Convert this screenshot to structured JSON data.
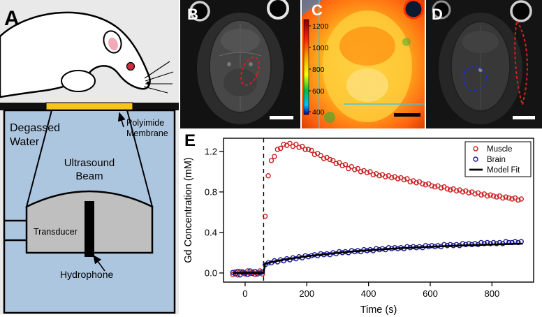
{
  "panels": {
    "a": {
      "label": "A",
      "labels": {
        "degassed": [
          "Degassed",
          "Water"
        ],
        "membrane": [
          "Polyimide",
          "Membrane"
        ],
        "beam": [
          "Ultrasound",
          "Beam"
        ],
        "transducer": "Transducer",
        "hydrophone": "Hydrophone"
      }
    },
    "b": {
      "label": "B"
    },
    "c": {
      "label": "C",
      "colorbar_ticks": [
        "1200",
        "1000",
        "800",
        "600",
        "400"
      ]
    },
    "d": {
      "label": "D"
    },
    "e": {
      "label": "E"
    }
  },
  "colors": {
    "muscle": "#cc2020",
    "brain": "#1c1c8f",
    "model_fit": "#000000",
    "membrane_yellow": "#f6c41a",
    "water_blue": "#adc6e0",
    "transducer_gray": "#bfbfbf"
  },
  "chart_data": {
    "type": "scatter",
    "title": "",
    "xlabel": "Time (s)",
    "ylabel": "Gd Concentration (mM)",
    "xlim": [
      -70,
      935
    ],
    "ylim": [
      -0.09,
      1.33
    ],
    "xticks": [
      0,
      200,
      400,
      600,
      800
    ],
    "xtick_labels": [
      "0",
      "200",
      "400",
      "600",
      "800"
    ],
    "yticks": [
      0.0,
      0.4,
      0.8,
      1.2
    ],
    "ytick_labels": [
      "0.0",
      "0.4",
      "0.8",
      "1.2"
    ],
    "vline_x": 60,
    "grid": false,
    "legend_position": "top-right",
    "legend": [
      {
        "label": "Muscle",
        "color": "#cc2020",
        "marker": "circle"
      },
      {
        "label": "Brain",
        "color": "#1c1c8f",
        "marker": "circle"
      },
      {
        "label": "Model Fit",
        "color": "#000000",
        "marker": "line"
      }
    ],
    "series": [
      {
        "name": "Muscle",
        "color": "#cc2020",
        "type": "scatter",
        "x": [
          -40,
          -32,
          -24,
          -16,
          -8,
          0,
          8,
          16,
          24,
          32,
          40,
          48,
          56,
          65,
          75,
          85,
          95,
          105,
          115,
          125,
          135,
          145,
          155,
          165,
          175,
          185,
          195,
          205,
          215,
          225,
          235,
          245,
          255,
          265,
          275,
          285,
          295,
          305,
          315,
          325,
          335,
          345,
          355,
          365,
          375,
          385,
          395,
          405,
          415,
          425,
          435,
          445,
          455,
          465,
          475,
          485,
          495,
          505,
          515,
          525,
          535,
          545,
          555,
          565,
          575,
          585,
          595,
          605,
          615,
          625,
          635,
          645,
          655,
          665,
          675,
          685,
          695,
          705,
          715,
          725,
          735,
          745,
          755,
          765,
          775,
          785,
          795,
          805,
          815,
          825,
          835,
          845,
          855,
          865,
          875,
          885,
          895
        ],
        "y": [
          -0.015,
          0.01,
          -0.02,
          0.015,
          0,
          -0.01,
          0.02,
          -0.005,
          0.01,
          -0.015,
          0.005,
          0.02,
          -0.01,
          0.56,
          0.96,
          1.11,
          1.15,
          1.22,
          1.23,
          1.27,
          1.26,
          1.28,
          1.25,
          1.27,
          1.24,
          1.25,
          1.22,
          1.22,
          1.21,
          1.17,
          1.18,
          1.16,
          1.13,
          1.14,
          1.12,
          1.11,
          1.08,
          1.09,
          1.06,
          1.07,
          1.03,
          1.05,
          1.02,
          1.03,
          1.0,
          1.01,
          0.99,
          1.0,
          0.97,
          0.98,
          0.96,
          0.97,
          0.95,
          0.96,
          0.94,
          0.95,
          0.93,
          0.94,
          0.92,
          0.93,
          0.9,
          0.91,
          0.89,
          0.9,
          0.88,
          0.87,
          0.88,
          0.86,
          0.85,
          0.86,
          0.84,
          0.85,
          0.83,
          0.82,
          0.83,
          0.81,
          0.82,
          0.8,
          0.81,
          0.79,
          0.8,
          0.78,
          0.79,
          0.77,
          0.78,
          0.76,
          0.77,
          0.76,
          0.75,
          0.76,
          0.74,
          0.75,
          0.74,
          0.73,
          0.74,
          0.72,
          0.73
        ]
      },
      {
        "name": "Brain",
        "color": "#1c1c8f",
        "type": "scatter",
        "x": [
          -40,
          -32,
          -24,
          -16,
          -8,
          0,
          8,
          16,
          24,
          32,
          40,
          48,
          56,
          65,
          75,
          85,
          95,
          105,
          115,
          125,
          135,
          145,
          155,
          165,
          175,
          185,
          195,
          205,
          215,
          225,
          235,
          245,
          255,
          265,
          275,
          285,
          295,
          305,
          315,
          325,
          335,
          345,
          355,
          365,
          375,
          385,
          395,
          405,
          415,
          425,
          435,
          445,
          455,
          465,
          475,
          485,
          495,
          505,
          515,
          525,
          535,
          545,
          555,
          565,
          575,
          585,
          595,
          605,
          615,
          625,
          635,
          645,
          655,
          665,
          675,
          685,
          695,
          705,
          715,
          725,
          735,
          745,
          755,
          765,
          775,
          785,
          795,
          805,
          815,
          825,
          835,
          845,
          855,
          865,
          875,
          885,
          895
        ],
        "y": [
          0.005,
          -0.01,
          0.015,
          -0.02,
          0.01,
          0,
          -0.015,
          0.02,
          -0.005,
          0.015,
          -0.01,
          0,
          0.01,
          0.08,
          0.1,
          0.1,
          0.12,
          0.11,
          0.13,
          0.12,
          0.14,
          0.13,
          0.15,
          0.14,
          0.16,
          0.15,
          0.17,
          0.16,
          0.17,
          0.18,
          0.17,
          0.19,
          0.18,
          0.19,
          0.18,
          0.2,
          0.19,
          0.21,
          0.2,
          0.21,
          0.2,
          0.22,
          0.21,
          0.22,
          0.21,
          0.23,
          0.22,
          0.23,
          0.22,
          0.24,
          0.23,
          0.24,
          0.23,
          0.25,
          0.24,
          0.25,
          0.24,
          0.25,
          0.24,
          0.26,
          0.25,
          0.26,
          0.25,
          0.26,
          0.25,
          0.27,
          0.26,
          0.27,
          0.26,
          0.27,
          0.26,
          0.28,
          0.27,
          0.28,
          0.27,
          0.28,
          0.27,
          0.29,
          0.28,
          0.29,
          0.28,
          0.29,
          0.28,
          0.3,
          0.29,
          0.3,
          0.29,
          0.3,
          0.29,
          0.3,
          0.29,
          0.31,
          0.3,
          0.3,
          0.31,
          0.3,
          0.31
        ]
      },
      {
        "name": "Model Fit",
        "color": "#000000",
        "type": "line",
        "x": [
          -40,
          0,
          55,
          60,
          65,
          80,
          100,
          125,
          150,
          175,
          200,
          250,
          300,
          350,
          400,
          450,
          500,
          550,
          600,
          650,
          700,
          750,
          800,
          850,
          900
        ],
        "y": [
          0,
          0,
          0,
          0.005,
          0.09,
          0.104,
          0.117,
          0.131,
          0.143,
          0.154,
          0.165,
          0.183,
          0.199,
          0.213,
          0.224,
          0.235,
          0.244,
          0.252,
          0.259,
          0.265,
          0.271,
          0.276,
          0.281,
          0.285,
          0.289
        ]
      }
    ]
  }
}
